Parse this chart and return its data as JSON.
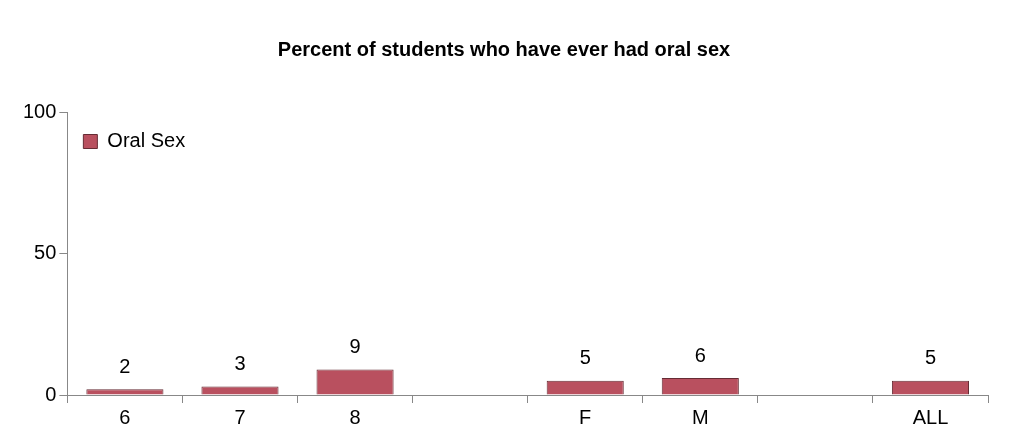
{
  "chart_data": {
    "type": "bar",
    "title": "Percent of students who have ever had oral sex",
    "categories": [
      "6",
      "7",
      "8",
      null,
      "F",
      "M",
      null,
      "ALL"
    ],
    "series": [
      {
        "name": "Oral Sex",
        "color": "#b9505f",
        "values": [
          2,
          3,
          9,
          null,
          5,
          6,
          null,
          5
        ]
      }
    ],
    "ylim": [
      0,
      100
    ],
    "yticks": [
      0,
      50,
      100
    ],
    "grid": false,
    "legend": "top",
    "data_labels": true
  }
}
